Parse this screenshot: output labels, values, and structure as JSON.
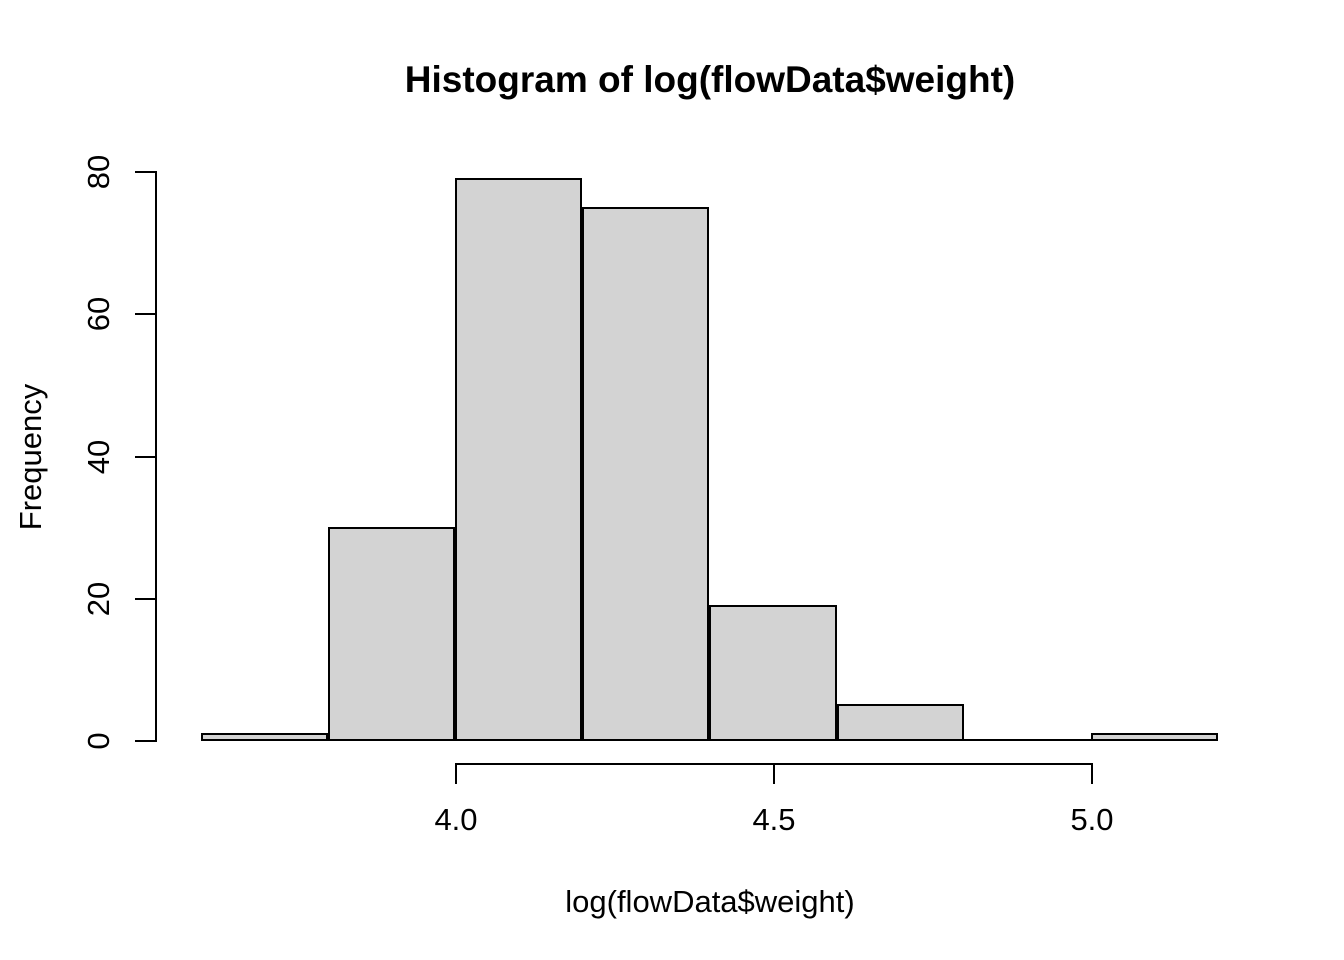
{
  "chart_data": {
    "type": "bar",
    "subtype": "histogram",
    "title": "Histogram of log(flowData$weight)",
    "xlabel": "log(flowData$weight)",
    "ylabel": "Frequency",
    "bin_edges": [
      3.6,
      3.8,
      4.0,
      4.2,
      4.4,
      4.6,
      4.8,
      5.0,
      5.2
    ],
    "counts": [
      1,
      30,
      79,
      75,
      19,
      5,
      0,
      1
    ],
    "x_ticks": [
      4.0,
      4.5,
      5.0
    ],
    "x_tick_labels": [
      "4.0",
      "4.5",
      "5.0"
    ],
    "y_ticks": [
      0,
      20,
      40,
      60,
      80
    ],
    "y_tick_labels": [
      "0",
      "20",
      "40",
      "60",
      "80"
    ],
    "xlim": [
      3.6,
      5.2
    ],
    "ylim": [
      0,
      80
    ],
    "grid": false,
    "legend": false,
    "bar_fill": "#d3d3d3",
    "bar_stroke": "#000000",
    "axis_color": "#000000",
    "background": "#ffffff"
  }
}
